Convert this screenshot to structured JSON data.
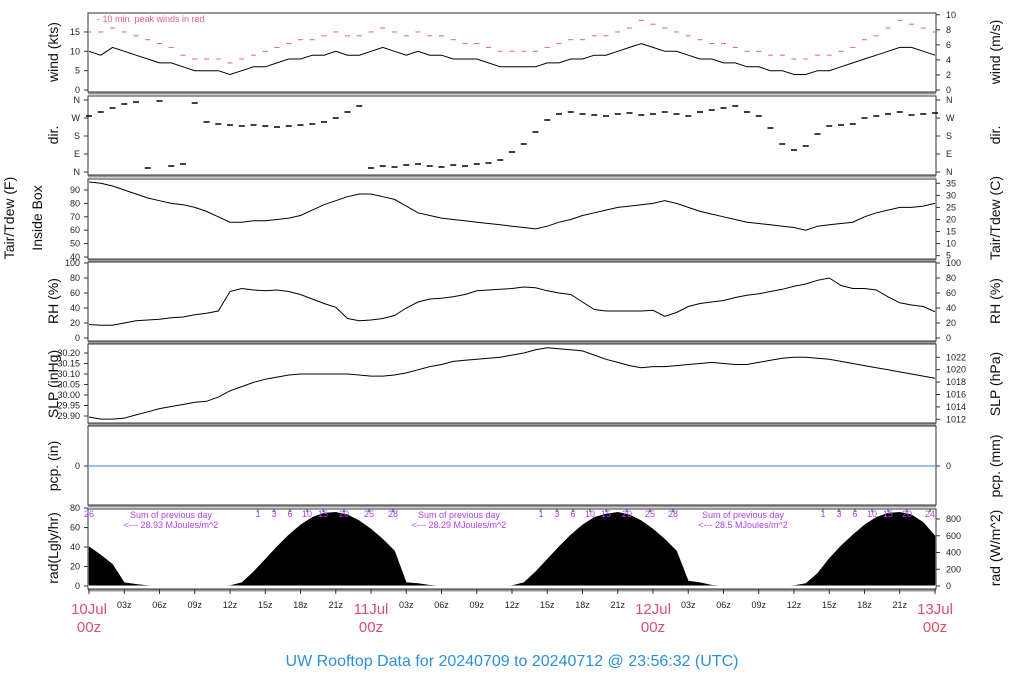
{
  "title": "UW Rooftop Data for 20240709  to  20240712 @ 23:56:32  (UTC)",
  "colors": {
    "peak_wind": "#e8607a",
    "date_label": "#d9506e",
    "annotation": "#b040f0",
    "title": "#2b8fe0",
    "precip_line": "#3a7fd0",
    "series": "#000000"
  },
  "chart_data": {
    "type": "line",
    "x_axis": {
      "hour_ticks": [
        "03z",
        "06z",
        "09z",
        "12z",
        "15z",
        "18z",
        "21z"
      ],
      "day_labels": [
        {
          "date": "10Jul",
          "hour": "00z"
        },
        {
          "date": "11Jul",
          "hour": "00z"
        },
        {
          "date": "12Jul",
          "hour": "00z"
        },
        {
          "date": "13Jul",
          "hour": "00z"
        }
      ],
      "range": [
        "10Jul 00z",
        "13Jul 00z"
      ]
    },
    "times": [
      "10Jul 00z",
      "10Jul 01z",
      "10Jul 02z",
      "10Jul 03z",
      "10Jul 04z",
      "10Jul 05z",
      "10Jul 06z",
      "10Jul 07z",
      "10Jul 08z",
      "10Jul 09z",
      "10Jul 10z",
      "10Jul 11z",
      "10Jul 12z",
      "10Jul 13z",
      "10Jul 14z",
      "10Jul 15z",
      "10Jul 16z",
      "10Jul 17z",
      "10Jul 18z",
      "10Jul 19z",
      "10Jul 20z",
      "10Jul 21z",
      "10Jul 22z",
      "10Jul 23z",
      "11Jul 00z",
      "11Jul 01z",
      "11Jul 02z",
      "11Jul 03z",
      "11Jul 04z",
      "11Jul 05z",
      "11Jul 06z",
      "11Jul 07z",
      "11Jul 08z",
      "11Jul 09z",
      "11Jul 10z",
      "11Jul 11z",
      "11Jul 12z",
      "11Jul 13z",
      "11Jul 14z",
      "11Jul 15z",
      "11Jul 16z",
      "11Jul 17z",
      "11Jul 18z",
      "11Jul 19z",
      "11Jul 20z",
      "11Jul 21z",
      "11Jul 22z",
      "11Jul 23z",
      "12Jul 00z",
      "12Jul 01z",
      "12Jul 02z",
      "12Jul 03z",
      "12Jul 04z",
      "12Jul 05z",
      "12Jul 06z",
      "12Jul 07z",
      "12Jul 08z",
      "12Jul 09z",
      "12Jul 10z",
      "12Jul 11z",
      "12Jul 12z",
      "12Jul 13z",
      "12Jul 14z",
      "12Jul 15z",
      "12Jul 16z",
      "12Jul 17z",
      "12Jul 18z",
      "12Jul 19z",
      "12Jul 20z",
      "12Jul 21z",
      "12Jul 22z",
      "12Jul 23z",
      "13Jul 00z"
    ],
    "panels": {
      "wind": {
        "ylabel": "wind (kts)",
        "ylabel_right": "wind (m/s)",
        "yticks": [
          0,
          5,
          10,
          15
        ],
        "yticks_right": [
          0,
          2,
          4,
          6,
          8,
          10
        ],
        "ylim": [
          0,
          19.44
        ],
        "legend": "- 10 min. peak winds in red",
        "mean": [
          10,
          9,
          11,
          10,
          9,
          8,
          7,
          7,
          6,
          5,
          5,
          5,
          4,
          5,
          6,
          6,
          7,
          8,
          8,
          9,
          9,
          10,
          9,
          9,
          10,
          11,
          10,
          9,
          10,
          9,
          9,
          8,
          8,
          8,
          7,
          6,
          6,
          6,
          6,
          7,
          7,
          8,
          8,
          9,
          9,
          10,
          11,
          12,
          11,
          10,
          10,
          9,
          8,
          8,
          7,
          7,
          6,
          6,
          5,
          5,
          4,
          4,
          5,
          5,
          6,
          7,
          8,
          9,
          10,
          11,
          11,
          10,
          9
        ],
        "peak": [
          15,
          15,
          16,
          15,
          14,
          13,
          12,
          11,
          9,
          8,
          8,
          8,
          7,
          8,
          9,
          10,
          11,
          12,
          13,
          13,
          14,
          15,
          14,
          14,
          15,
          16,
          15,
          14,
          15,
          14,
          14,
          13,
          12,
          12,
          11,
          10,
          10,
          10,
          10,
          11,
          12,
          13,
          13,
          14,
          14,
          15,
          16,
          18,
          17,
          16,
          15,
          14,
          13,
          12,
          12,
          11,
          10,
          10,
          9,
          9,
          8,
          8,
          9,
          9,
          10,
          11,
          13,
          14,
          16,
          18,
          17,
          16,
          15
        ]
      },
      "direction": {
        "ylabel": "dir.",
        "ylabel_right": "dir.",
        "yticks": [
          "N",
          "E",
          "S",
          "W",
          "N"
        ],
        "degrees": [
          280,
          300,
          320,
          340,
          350,
          20,
          355,
          30,
          40,
          345,
          250,
          240,
          235,
          230,
          235,
          230,
          225,
          230,
          235,
          240,
          250,
          270,
          300,
          330,
          20,
          30,
          25,
          35,
          40,
          30,
          25,
          35,
          30,
          40,
          45,
          60,
          100,
          140,
          200,
          260,
          290,
          300,
          290,
          285,
          280,
          290,
          295,
          285,
          290,
          300,
          290,
          280,
          300,
          310,
          320,
          330,
          300,
          280,
          220,
          140,
          110,
          130,
          190,
          230,
          235,
          240,
          270,
          280,
          290,
          300,
          285,
          290,
          295
        ]
      },
      "temperature": {
        "ylabel": "Tair/Tdew (F)",
        "ylabel2": "Inside Box",
        "ylabel_right": "Tair/Tdew (C)",
        "yticks": [
          40,
          50,
          60,
          70,
          80,
          90
        ],
        "yticks_right": [
          5,
          10,
          15,
          20,
          25,
          30,
          35
        ],
        "values_f": [
          96,
          95,
          93,
          90,
          87,
          84,
          82,
          80,
          79,
          77,
          74,
          70,
          66,
          66,
          67,
          67,
          68,
          69,
          71,
          75,
          79,
          82,
          85,
          87,
          87,
          85,
          83,
          78,
          73,
          71,
          69,
          68,
          67,
          66,
          65,
          64,
          63,
          62,
          61,
          63,
          66,
          68,
          71,
          73,
          75,
          77,
          78,
          79,
          80,
          82,
          80,
          77,
          74,
          72,
          70,
          68,
          66,
          65,
          64,
          63,
          62,
          60,
          63,
          64,
          65,
          66,
          70,
          73,
          75,
          77,
          77,
          78,
          80
        ]
      },
      "rh": {
        "ylabel": "RH (%)",
        "ylabel_right": "RH (%)",
        "yticks": [
          0,
          20,
          40,
          60,
          80,
          100
        ],
        "ylim": [
          0,
          100
        ],
        "values": [
          18,
          17,
          17,
          20,
          23,
          24,
          25,
          27,
          28,
          31,
          33,
          36,
          62,
          66,
          64,
          63,
          64,
          62,
          58,
          52,
          46,
          41,
          26,
          23,
          24,
          26,
          30,
          40,
          48,
          52,
          53,
          55,
          58,
          63,
          64,
          65,
          66,
          68,
          67,
          63,
          60,
          58,
          48,
          38,
          36,
          36,
          36,
          36,
          37,
          29,
          34,
          42,
          46,
          48,
          50,
          54,
          57,
          59,
          62,
          65,
          69,
          72,
          77,
          80,
          70,
          66,
          66,
          64,
          55,
          47,
          44,
          42,
          35
        ]
      },
      "slp": {
        "ylabel": "SLP (inHg)",
        "ylabel_right": "SLP (hPa)",
        "yticks": [
          "29.90",
          "29.95",
          "30.00",
          "30.05",
          "30.10",
          "30.15",
          "30.20"
        ],
        "yticks_right": [
          1012,
          1014,
          1016,
          1018,
          1020,
          1022
        ],
        "values": [
          29.895,
          29.885,
          29.885,
          29.89,
          29.905,
          29.92,
          29.935,
          29.945,
          29.955,
          29.965,
          29.97,
          29.99,
          30.02,
          30.04,
          30.06,
          30.075,
          30.085,
          30.095,
          30.1,
          30.1,
          30.1,
          30.1,
          30.1,
          30.095,
          30.09,
          30.09,
          30.095,
          30.105,
          30.12,
          30.135,
          30.145,
          30.16,
          30.165,
          30.17,
          30.175,
          30.18,
          30.19,
          30.2,
          30.215,
          30.225,
          30.22,
          30.215,
          30.21,
          30.19,
          30.17,
          30.155,
          30.14,
          30.13,
          30.135,
          30.135,
          30.14,
          30.145,
          30.15,
          30.155,
          30.15,
          30.145,
          30.145,
          30.155,
          30.165,
          30.175,
          30.18,
          30.18,
          30.175,
          30.17,
          30.16,
          30.15,
          30.14,
          30.13,
          30.12,
          30.11,
          30.1,
          30.09,
          30.08
        ]
      },
      "precip": {
        "ylabel": "pcp. (in)",
        "ylabel_right": "pcp. (mm)",
        "yticks": [
          0
        ],
        "yticks_right": [
          0
        ],
        "value": 0
      },
      "radiation": {
        "ylabel": "rad(Lgly/hr)",
        "ylabel_right": "rad (W/m^2)",
        "yticks": [
          0,
          20,
          40,
          60,
          80
        ],
        "yticks_right": [
          0,
          200,
          400,
          600,
          800
        ],
        "values_wm2": [
          470,
          370,
          260,
          40,
          20,
          5,
          0,
          0,
          0,
          0,
          0,
          0,
          5,
          40,
          170,
          320,
          470,
          610,
          730,
          820,
          870,
          880,
          850,
          780,
          680,
          560,
          420,
          40,
          30,
          10,
          0,
          0,
          0,
          0,
          0,
          0,
          5,
          40,
          170,
          320,
          470,
          610,
          730,
          820,
          860,
          880,
          850,
          780,
          680,
          560,
          420,
          60,
          40,
          10,
          0,
          0,
          0,
          0,
          0,
          0,
          5,
          30,
          150,
          330,
          480,
          610,
          730,
          820,
          870,
          880,
          850,
          760,
          600
        ],
        "start_label": "26",
        "hour_marks": [
          [
            "1",
            "3",
            "6",
            "10",
            "15",
            "20",
            "25",
            "28"
          ],
          [
            "1",
            "3",
            "6",
            "10",
            "15",
            "20",
            "25",
            "28"
          ],
          [
            "1",
            "3",
            "6",
            "10",
            "15",
            "20",
            "24"
          ]
        ],
        "daily_sums": [
          {
            "line1": "Sum of previous day",
            "line2": "<--- 28.93 MJoules/m^2"
          },
          {
            "line1": "Sum of previous day",
            "line2": "<--- 28.29 MJoules/m^2"
          },
          {
            "line1": "Sum of previous day",
            "line2": "<--- 28.5 MJoules/m^2"
          }
        ]
      }
    }
  }
}
